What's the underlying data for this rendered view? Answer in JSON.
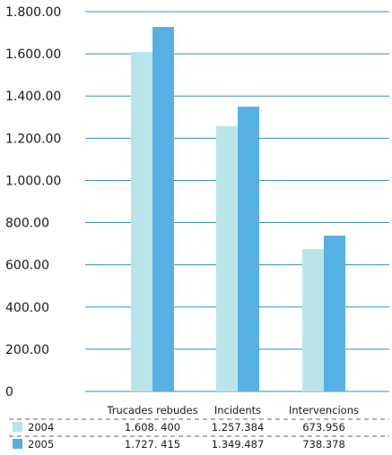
{
  "chart_data": {
    "type": "bar",
    "categories": [
      "Trucades rebudes",
      "Incidents",
      "Intervencions"
    ],
    "series": [
      {
        "name": "2004",
        "values": [
          1608.4,
          1257.384,
          673.956
        ],
        "color": "#b9e4ea",
        "labels": [
          "1.608. 400",
          "1.257.384",
          "673.956"
        ]
      },
      {
        "name": "2005",
        "values": [
          1727.415,
          1349.487,
          738.378
        ],
        "color": "#56b0e2",
        "labels": [
          "1.727. 415",
          "1.349.487",
          "738.378"
        ]
      }
    ],
    "ylim": [
      0,
      1800
    ],
    "yticks": [
      {
        "value": 1800,
        "label": "1.800.00"
      },
      {
        "value": 1600,
        "label": "1.600.00"
      },
      {
        "value": 1400,
        "label": "1.400.00"
      },
      {
        "value": 1200,
        "label": "1.200.00"
      },
      {
        "value": 1000,
        "label": "1.000.00"
      },
      {
        "value": 800,
        "label": "800.00"
      },
      {
        "value": 600,
        "label": "600.00"
      },
      {
        "value": 400,
        "label": "400.00"
      },
      {
        "value": 200,
        "label": "200.00"
      },
      {
        "value": 0,
        "label": "0"
      }
    ],
    "grid": true,
    "legend": "data-table-bottom",
    "gridline_color": "#3a8ec4"
  }
}
